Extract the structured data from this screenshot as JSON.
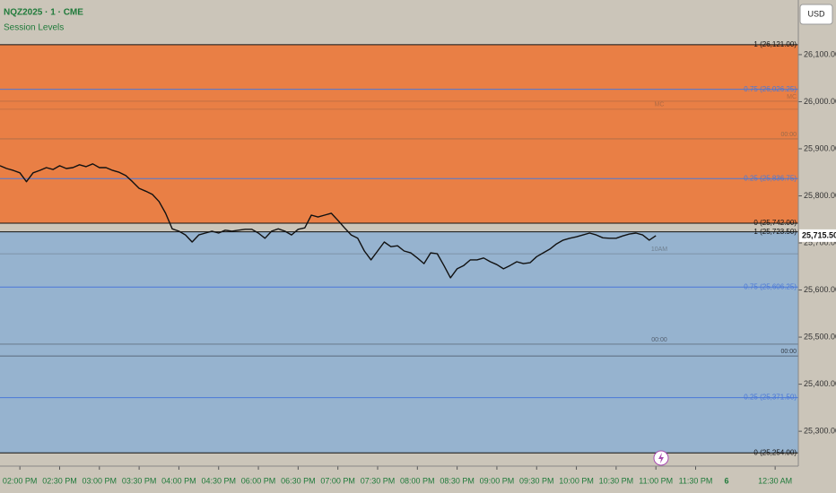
{
  "chart_data": {
    "type": "line",
    "title": "NQZ2025 · 1 · CME",
    "subtitle": "Session Levels",
    "currency": "USD",
    "date_label": "6",
    "ylim": [
      25226,
      26216
    ],
    "xlim": [
      0,
      120.5
    ],
    "yticks": [
      {
        "value": 26100,
        "label": "26,100.00"
      },
      {
        "value": 26000,
        "label": "26,000.00"
      },
      {
        "value": 25900,
        "label": "25,900.00"
      },
      {
        "value": 25800,
        "label": "25,800.00"
      },
      {
        "value": 25700,
        "label": "25,700.00"
      },
      {
        "value": 25600,
        "label": "25,600.00"
      },
      {
        "value": 25500,
        "label": "25,500.00"
      },
      {
        "value": 25400,
        "label": "25,400.00"
      },
      {
        "value": 25300,
        "label": "25,300.00"
      }
    ],
    "xticks": [
      {
        "value": 3,
        "label": "02:00 PM"
      },
      {
        "value": 9,
        "label": "02:30 PM"
      },
      {
        "value": 15,
        "label": "03:00 PM"
      },
      {
        "value": 21,
        "label": "03:30 PM"
      },
      {
        "value": 27,
        "label": "04:00 PM"
      },
      {
        "value": 33,
        "label": "04:30 PM"
      },
      {
        "value": 39,
        "label": "06:00 PM"
      },
      {
        "value": 45,
        "label": "06:30 PM"
      },
      {
        "value": 51,
        "label": "07:00 PM"
      },
      {
        "value": 57,
        "label": "07:30 PM"
      },
      {
        "value": 63,
        "label": "08:00 PM"
      },
      {
        "value": 69,
        "label": "08:30 PM"
      },
      {
        "value": 75,
        "label": "09:00 PM"
      },
      {
        "value": 81,
        "label": "09:30 PM"
      },
      {
        "value": 87,
        "label": "10:00 PM"
      },
      {
        "value": 93,
        "label": "10:30 PM"
      },
      {
        "value": 99,
        "label": "11:00 PM"
      },
      {
        "value": 105,
        "label": "11:30 PM"
      },
      {
        "value": 117,
        "label": "12:30 AM"
      }
    ],
    "color": "#111111",
    "values": [
      25864,
      25858,
      25854,
      25849,
      25830,
      25849,
      25854,
      25860,
      25856,
      25864,
      25858,
      25860,
      25866,
      25862,
      25868,
      25860,
      25860,
      25854,
      25850,
      25843,
      25830,
      25816,
      25810,
      25803,
      25788,
      25763,
      25730,
      25725,
      25717,
      25702,
      25717,
      25721,
      25725,
      25721,
      25727,
      25725,
      25727,
      25729,
      25729,
      25721,
      25710,
      25725,
      25730,
      25725,
      25717,
      25729,
      25732,
      25759,
      25755,
      25759,
      25763,
      25748,
      25732,
      25717,
      25710,
      25683,
      25664,
      25683,
      25702,
      25692,
      25694,
      25683,
      25679,
      25668,
      25656,
      25679,
      25677,
      25652,
      25626,
      25645,
      25652,
      25664,
      25664,
      25668,
      25660,
      25654,
      25645,
      25652,
      25660,
      25656,
      25658,
      25671,
      25679,
      25687,
      25698,
      25706,
      25710,
      25713,
      25717,
      25721,
      25717,
      25711,
      25710,
      25710,
      25715,
      25719,
      25721,
      25717,
      25706,
      25715.5
    ],
    "price_marker": {
      "value": 25715.5,
      "label": "25,715.50"
    },
    "zones": [
      {
        "from": 25742,
        "to": 26121,
        "color": "#e97f45"
      },
      {
        "from": 25254,
        "to": 25723.5,
        "color": "#96b3cf"
      }
    ],
    "levels": [
      {
        "value": 26121,
        "label": "1 (26,121.00)",
        "color": "#111111"
      },
      {
        "value": 26026.25,
        "label": "0.75 (26,026.25)",
        "color": "#4a78d8"
      },
      {
        "value": 25836.75,
        "label": "0.25 (25,836.75)",
        "color": "#4a78d8"
      },
      {
        "value": 25742,
        "label": "0 (25,742.00)",
        "color": "#111111"
      },
      {
        "value": 25723.5,
        "label": "1 (25,723.50)",
        "color": "#111111"
      },
      {
        "value": 25606.25,
        "label": "0.75 (25,606.25)",
        "color": "#4a78d8"
      },
      {
        "value": 25371.5,
        "label": "0.25 (25,371.50)",
        "color": "#4a78d8"
      },
      {
        "value": 25254,
        "label": "0 (25,254.00)",
        "color": "#111111"
      }
    ],
    "annotations": [
      {
        "value": 26001,
        "text": "MC",
        "pos": "right",
        "color": "#b06a45"
      },
      {
        "value": 25984,
        "text": "MC",
        "pos": "mid",
        "color": "#b06a45"
      },
      {
        "value": 25921,
        "text": "00:00",
        "pos": "right",
        "color": "#9a6a4a"
      },
      {
        "value": 25677,
        "text": "10AM",
        "pos": "mid",
        "color": "#6f7f8f"
      },
      {
        "value": 25485,
        "text": "00:00",
        "pos": "mid",
        "color": "#556070"
      },
      {
        "value": 25460,
        "text": "00:00",
        "pos": "right",
        "color": "#333b45"
      }
    ]
  }
}
